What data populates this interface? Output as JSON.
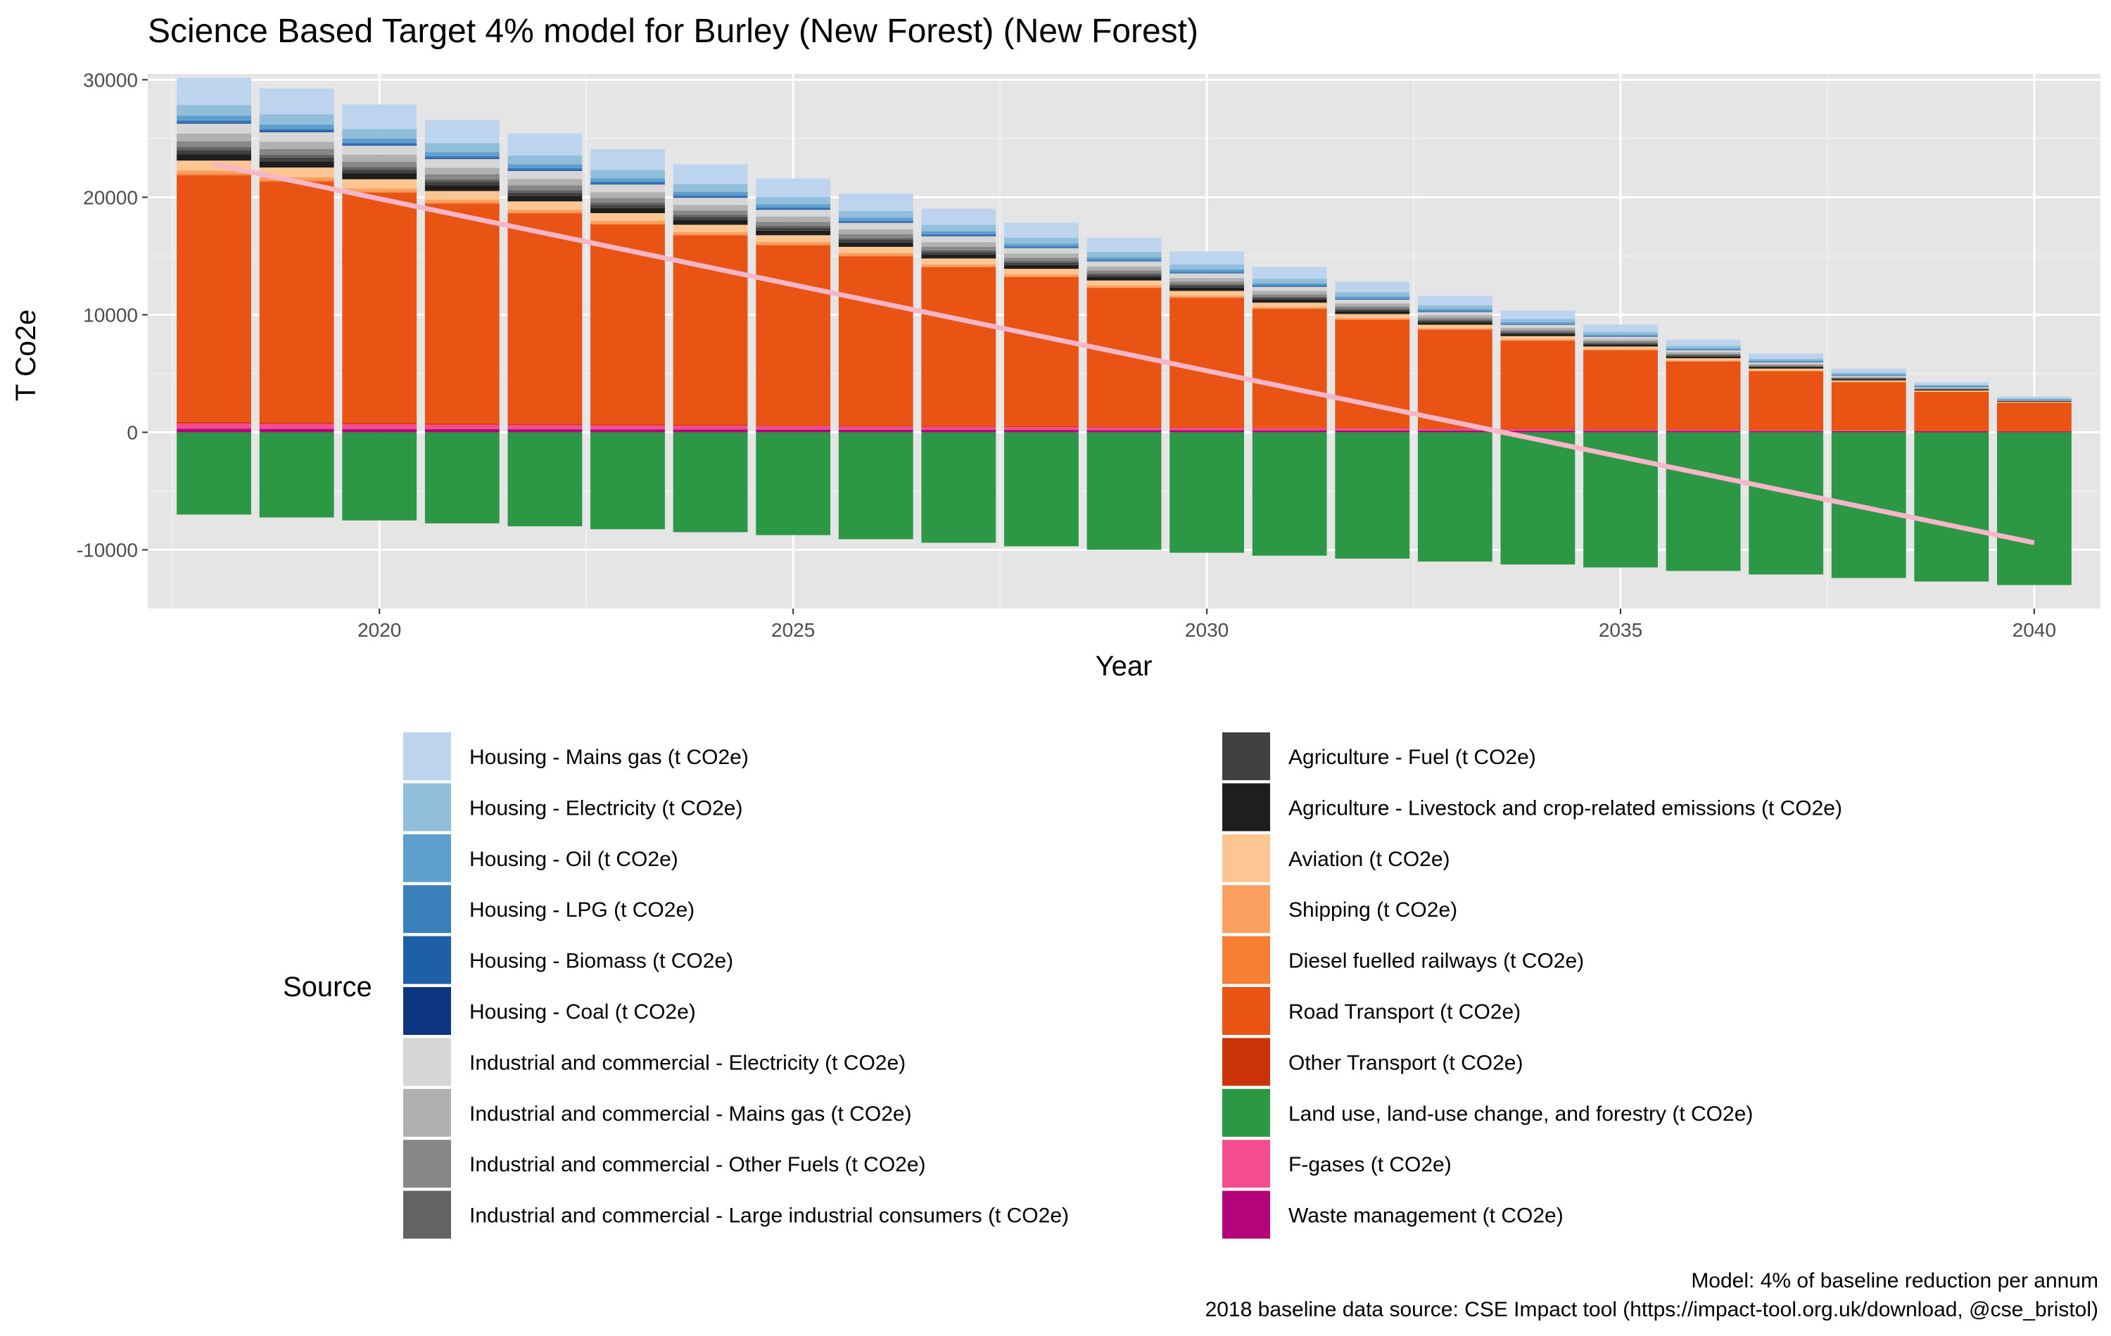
{
  "chart_data": {
    "type": "bar",
    "stacked": true,
    "title": "Science Based Target 4% model for Burley (New Forest) (New Forest)",
    "xlabel": "Year",
    "ylabel": "T Co2e",
    "xlim": [
      2017.2,
      2040.8
    ],
    "ylim": [
      -15000,
      30500
    ],
    "xticks": [
      2020,
      2025,
      2030,
      2035,
      2040
    ],
    "yticks": [
      -10000,
      0,
      10000,
      20000,
      30000
    ],
    "ytick_labels": [
      "-10000",
      "0",
      "10000",
      "20000",
      "30000"
    ],
    "x": [
      2018,
      2019,
      2020,
      2021,
      2022,
      2023,
      2024,
      2025,
      2026,
      2027,
      2028,
      2029,
      2030,
      2031,
      2032,
      2033,
      2034,
      2035,
      2036,
      2037,
      2038,
      2039,
      2040
    ],
    "grid": true,
    "background": "#e5e5e5",
    "legend_title": "Source",
    "legend_position": "bottom",
    "series": [
      {
        "name": "Housing - Mains gas (t CO2e)",
        "color": "#bcd4ed",
        "values": [
          2300,
          2190,
          2080,
          1980,
          1880,
          1780,
          1680,
          1580,
          1480,
          1380,
          1290,
          1190,
          1100,
          1000,
          910,
          810,
          720,
          620,
          530,
          430,
          340,
          240,
          150
        ]
      },
      {
        "name": "Housing - Electricity (t CO2e)",
        "color": "#91bfdb",
        "values": [
          900,
          860,
          820,
          780,
          740,
          700,
          660,
          620,
          580,
          540,
          500,
          460,
          430,
          390,
          350,
          310,
          280,
          240,
          200,
          170,
          130,
          90,
          60
        ]
      },
      {
        "name": "Housing - Oil (t CO2e)",
        "color": "#5e9fcf",
        "values": [
          400,
          380,
          360,
          340,
          330,
          310,
          290,
          270,
          260,
          240,
          220,
          200,
          190,
          170,
          150,
          140,
          120,
          100,
          90,
          70,
          60,
          40,
          30
        ]
      },
      {
        "name": "Housing - LPG (t CO2e)",
        "color": "#3a80bd",
        "values": [
          150,
          140,
          130,
          130,
          120,
          110,
          110,
          100,
          90,
          90,
          80,
          70,
          70,
          60,
          60,
          50,
          40,
          40,
          30,
          30,
          20,
          20,
          10
        ]
      },
      {
        "name": "Housing - Biomass (t CO2e)",
        "color": "#1f5fa8",
        "values": [
          80,
          80,
          70,
          70,
          60,
          60,
          60,
          50,
          50,
          50,
          40,
          40,
          40,
          30,
          30,
          30,
          20,
          20,
          20,
          10,
          10,
          10,
          10
        ]
      },
      {
        "name": "Housing - Coal (t CO2e)",
        "color": "#0c3582",
        "values": [
          60,
          60,
          50,
          50,
          50,
          50,
          40,
          40,
          40,
          40,
          30,
          30,
          30,
          30,
          20,
          20,
          20,
          20,
          10,
          10,
          10,
          10,
          0
        ]
      },
      {
        "name": "Industrial and commercial - Electricity (t CO2e)",
        "color": "#d6d6d6",
        "values": [
          850,
          810,
          770,
          730,
          700,
          660,
          620,
          580,
          550,
          510,
          470,
          440,
          400,
          360,
          330,
          290,
          260,
          220,
          180,
          150,
          110,
          80,
          50
        ]
      },
      {
        "name": "Industrial and commercial - Mains gas (t CO2e)",
        "color": "#b0b0b0",
        "values": [
          650,
          620,
          590,
          560,
          530,
          500,
          470,
          450,
          420,
          390,
          360,
          330,
          300,
          280,
          250,
          220,
          190,
          170,
          140,
          110,
          80,
          60,
          30
        ]
      },
      {
        "name": "Industrial and commercial - Other Fuels (t CO2e)",
        "color": "#878787",
        "values": [
          500,
          480,
          450,
          430,
          410,
          390,
          360,
          340,
          320,
          300,
          280,
          250,
          230,
          210,
          190,
          170,
          150,
          130,
          110,
          80,
          60,
          40,
          20
        ]
      },
      {
        "name": "Industrial and commercial - Large industrial consumers (t CO2e)",
        "color": "#636363",
        "values": [
          250,
          240,
          230,
          220,
          210,
          190,
          180,
          170,
          160,
          150,
          140,
          130,
          120,
          110,
          100,
          90,
          80,
          60,
          50,
          40,
          30,
          20,
          10
        ]
      },
      {
        "name": "Agriculture - Fuel (t CO2e)",
        "color": "#404040",
        "values": [
          350,
          330,
          320,
          300,
          290,
          270,
          260,
          240,
          230,
          210,
          200,
          180,
          170,
          150,
          140,
          120,
          110,
          90,
          80,
          60,
          50,
          30,
          20
        ]
      },
      {
        "name": "Agriculture - Livestock and crop-related emissions (t CO2e)",
        "color": "#1e1e1e",
        "values": [
          550,
          530,
          500,
          480,
          460,
          430,
          410,
          390,
          360,
          340,
          320,
          300,
          280,
          250,
          230,
          210,
          190,
          170,
          150,
          120,
          100,
          80,
          60
        ]
      },
      {
        "name": "Aviation (t CO2e)",
        "color": "#fdc591",
        "values": [
          850,
          810,
          770,
          730,
          700,
          660,
          620,
          580,
          550,
          510,
          470,
          440,
          400,
          360,
          330,
          290,
          260,
          220,
          180,
          150,
          110,
          80,
          50
        ]
      },
      {
        "name": "Shipping (t CO2e)",
        "color": "#fba05e",
        "values": [
          300,
          290,
          270,
          260,
          250,
          230,
          220,
          210,
          190,
          180,
          170,
          160,
          140,
          130,
          120,
          100,
          90,
          80,
          70,
          50,
          40,
          30,
          20
        ]
      },
      {
        "name": "Diesel fuelled railways (t CO2e)",
        "color": "#f67f35",
        "values": [
          100,
          100,
          90,
          90,
          80,
          80,
          70,
          70,
          60,
          60,
          60,
          50,
          50,
          40,
          40,
          30,
          30,
          30,
          20,
          20,
          10,
          10,
          10
        ]
      },
      {
        "name": "Road Transport (t CO2e)",
        "color": "#e95314",
        "values": [
          21000,
          20500,
          19600,
          18700,
          17900,
          17000,
          16100,
          15300,
          14400,
          13500,
          12700,
          11800,
          11000,
          10100,
          9200,
          8400,
          7500,
          6700,
          5800,
          5000,
          4100,
          3300,
          2400
        ]
      },
      {
        "name": "Other Transport (t CO2e)",
        "color": "#cc3306",
        "values": [
          120,
          110,
          110,
          100,
          100,
          90,
          90,
          80,
          80,
          70,
          70,
          60,
          60,
          50,
          50,
          40,
          40,
          40,
          30,
          30,
          20,
          20,
          10
        ]
      },
      {
        "name": "Land use, land-use change, and forestry (t CO2e)",
        "color": "#2c9745",
        "values": [
          -7000,
          -7250,
          -7500,
          -7750,
          -8000,
          -8250,
          -8500,
          -8750,
          -9100,
          -9400,
          -9700,
          -10000,
          -10250,
          -10500,
          -10750,
          -11000,
          -11250,
          -11500,
          -11800,
          -12100,
          -12400,
          -12700,
          -13000
        ]
      },
      {
        "name": "F-gases (t CO2e)",
        "color": "#f44d8f",
        "values": [
          450,
          430,
          410,
          380,
          360,
          340,
          320,
          300,
          280,
          260,
          240,
          220,
          200,
          180,
          160,
          140,
          120,
          100,
          80,
          60,
          40,
          30,
          20
        ]
      },
      {
        "name": "Waste management (t CO2e)",
        "color": "#b3047b",
        "values": [
          300,
          290,
          280,
          270,
          260,
          250,
          240,
          230,
          220,
          210,
          200,
          190,
          180,
          170,
          160,
          150,
          140,
          130,
          120,
          110,
          100,
          90,
          80
        ]
      }
    ],
    "target_line": {
      "color": "#f7b6c8",
      "x": [
        2018,
        2040
      ],
      "y": [
        22800,
        -9400
      ]
    },
    "caption": [
      "Model: 4% of baseline reduction per annum",
      "2018 baseline data source: CSE Impact tool (https://impact-tool.org.uk/download, @cse_bristol)"
    ]
  }
}
